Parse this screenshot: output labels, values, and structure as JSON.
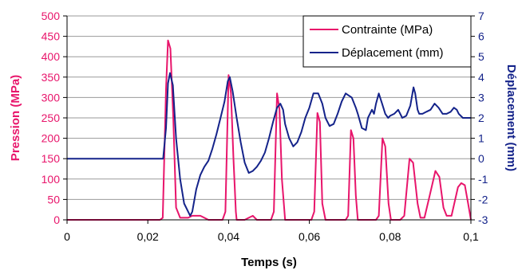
{
  "colors": {
    "stress": "#e8156b",
    "displacement": "#14238a",
    "grid": "#9a9a9a",
    "axis": "#000000",
    "plot_border": "#9a9a9a"
  },
  "chart_data": {
    "type": "line",
    "title": "",
    "xlabel": "Temps (s)",
    "ylabel_left": "Pression (MPa)",
    "ylabel_right": "Déplacement (mm)",
    "xlim": [
      0,
      0.1
    ],
    "ylim_left": [
      0,
      500
    ],
    "ylim_right": [
      -3,
      7
    ],
    "x_ticks": [
      0,
      0.02,
      0.04,
      0.06,
      0.08,
      0.1
    ],
    "x_tick_labels": [
      "0",
      "0,02",
      "0,04",
      "0,06",
      "0,08",
      "0,1"
    ],
    "y_left_ticks": [
      0,
      50,
      100,
      150,
      200,
      250,
      300,
      350,
      400,
      450,
      500
    ],
    "y_left_tick_labels": [
      "0",
      "50",
      "100",
      "150",
      "200",
      "250",
      "300",
      "350",
      "400",
      "450",
      "500"
    ],
    "y_right_ticks": [
      -3,
      -2,
      -1,
      0,
      1,
      2,
      3,
      4,
      5,
      6,
      7
    ],
    "y_right_tick_labels": [
      "-3",
      "-2",
      "-1",
      "0",
      "1",
      "2",
      "3",
      "4",
      "5",
      "6",
      "7"
    ],
    "grid": "horizontal",
    "legend_position": "top-right",
    "series": [
      {
        "name": "Contrainte (MPa)",
        "axis": "left",
        "color": "#e8156b",
        "x": [
          0,
          0.023,
          0.0237,
          0.0245,
          0.025,
          0.0256,
          0.0263,
          0.027,
          0.028,
          0.03,
          0.031,
          0.033,
          0.034,
          0.035,
          0.036,
          0.0385,
          0.0392,
          0.04,
          0.0406,
          0.0412,
          0.0418,
          0.042,
          0.044,
          0.045,
          0.046,
          0.047,
          0.0505,
          0.0512,
          0.052,
          0.0526,
          0.0532,
          0.054,
          0.0605,
          0.0612,
          0.062,
          0.0626,
          0.0632,
          0.064,
          0.069,
          0.0696,
          0.0703,
          0.0709,
          0.0715,
          0.072,
          0.0765,
          0.0772,
          0.0781,
          0.0788,
          0.0796,
          0.0802,
          0.0825,
          0.0835,
          0.0848,
          0.0857,
          0.0868,
          0.0875,
          0.0885,
          0.0898,
          0.0912,
          0.0922,
          0.0932,
          0.094,
          0.0952,
          0.0968,
          0.0976,
          0.0985,
          0.0993,
          0.1
        ],
        "y": [
          0,
          0,
          5,
          320,
          440,
          420,
          250,
          30,
          5,
          5,
          10,
          10,
          5,
          0,
          0,
          0,
          20,
          355,
          310,
          150,
          20,
          0,
          0,
          5,
          10,
          0,
          0,
          20,
          310,
          270,
          100,
          0,
          0,
          20,
          262,
          240,
          40,
          0,
          0,
          10,
          220,
          200,
          60,
          0,
          0,
          10,
          200,
          180,
          40,
          0,
          0,
          10,
          150,
          140,
          40,
          5,
          5,
          60,
          120,
          105,
          30,
          10,
          10,
          80,
          90,
          85,
          40,
          0
        ]
      },
      {
        "name": "Déplacement (mm)",
        "axis": "right",
        "color": "#14238a",
        "x": [
          0,
          0.0238,
          0.0245,
          0.025,
          0.0255,
          0.0262,
          0.027,
          0.028,
          0.029,
          0.0305,
          0.031,
          0.032,
          0.033,
          0.034,
          0.035,
          0.036,
          0.037,
          0.038,
          0.039,
          0.0398,
          0.0403,
          0.041,
          0.042,
          0.043,
          0.044,
          0.045,
          0.046,
          0.047,
          0.048,
          0.049,
          0.05,
          0.051,
          0.052,
          0.0528,
          0.0535,
          0.054,
          0.055,
          0.056,
          0.057,
          0.058,
          0.059,
          0.06,
          0.061,
          0.0622,
          0.0632,
          0.064,
          0.065,
          0.066,
          0.067,
          0.068,
          0.069,
          0.0705,
          0.0715,
          0.072,
          0.073,
          0.074,
          0.0745,
          0.0755,
          0.076,
          0.0765,
          0.0772,
          0.078,
          0.0788,
          0.0795,
          0.08,
          0.081,
          0.082,
          0.083,
          0.084,
          0.085,
          0.0858,
          0.0862,
          0.0868,
          0.0872,
          0.088,
          0.089,
          0.09,
          0.091,
          0.092,
          0.093,
          0.094,
          0.095,
          0.0958,
          0.0965,
          0.097,
          0.098,
          0.099,
          0.1
        ],
        "y": [
          0,
          0,
          1.5,
          3.7,
          4.2,
          3.6,
          1.0,
          -1.0,
          -2.2,
          -2.8,
          -2.6,
          -1.5,
          -0.8,
          -0.4,
          -0.1,
          0.5,
          1.2,
          2.0,
          2.8,
          3.8,
          4.0,
          3.3,
          2.0,
          0.8,
          -0.2,
          -0.7,
          -0.6,
          -0.4,
          -0.1,
          0.3,
          1.0,
          1.8,
          2.5,
          2.7,
          2.4,
          1.7,
          1.0,
          0.6,
          0.8,
          1.3,
          2.0,
          2.5,
          3.2,
          3.2,
          2.7,
          2.0,
          1.6,
          1.7,
          2.2,
          2.8,
          3.2,
          3.0,
          2.5,
          2.2,
          1.5,
          1.4,
          2.0,
          2.4,
          2.2,
          2.7,
          3.2,
          2.7,
          2.2,
          2.0,
          2.1,
          2.2,
          2.4,
          2.0,
          2.1,
          2.6,
          3.5,
          3.2,
          2.4,
          2.2,
          2.2,
          2.3,
          2.4,
          2.7,
          2.5,
          2.2,
          2.2,
          2.3,
          2.5,
          2.4,
          2.2,
          2.0,
          2.0,
          2.0
        ]
      }
    ]
  }
}
